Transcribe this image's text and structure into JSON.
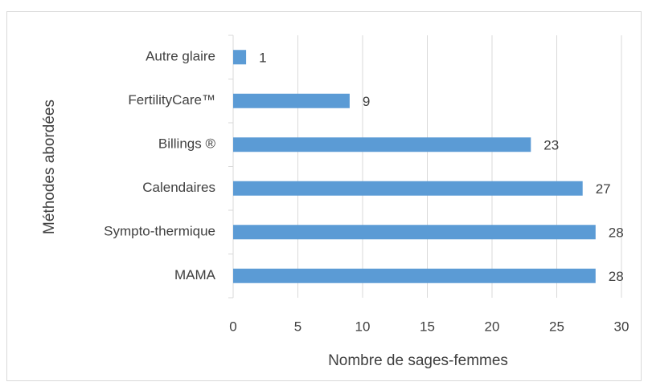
{
  "chart_data": {
    "type": "barh",
    "categories": [
      "Autre glaire",
      "FertilityCare™",
      "Billings ®",
      "Calendaires",
      "Sympto-thermique",
      "MAMA"
    ],
    "values": [
      1,
      9,
      23,
      27,
      28,
      28
    ],
    "color": "#5b9bd5",
    "xlabel": "Nombre de sages-femmes",
    "ylabel": "Méthodes abordées",
    "xlim": [
      0,
      30
    ],
    "xticks": [
      0,
      5,
      10,
      15,
      20,
      25,
      30
    ],
    "grid": true
  }
}
